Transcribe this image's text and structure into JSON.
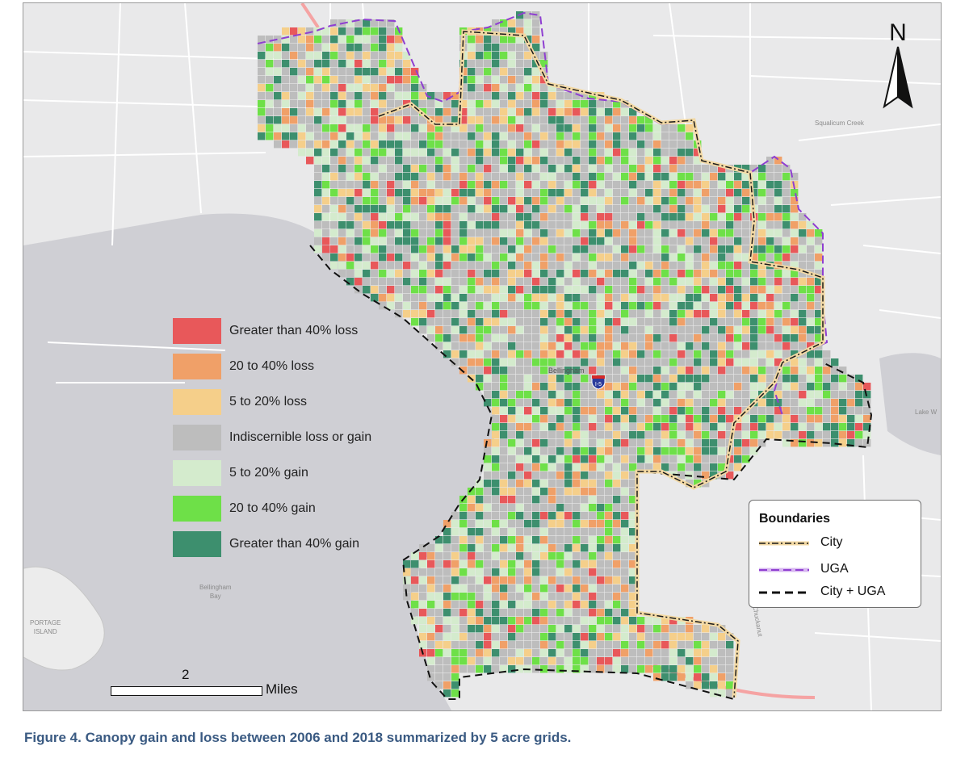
{
  "caption": "Figure 4. Canopy gain and loss between 2006 and 2018 summarized by 5 acre grids.",
  "legend": {
    "items": [
      {
        "label": "Greater than 40% loss",
        "color": "#e8585a"
      },
      {
        "label": "20 to 40% loss",
        "color": "#f0a068"
      },
      {
        "label": "5 to 20% loss",
        "color": "#f5cf8a"
      },
      {
        "label": "Indiscernible loss or gain",
        "color": "#bdbdbd"
      },
      {
        "label": "5 to 20% gain",
        "color": "#d4ebcd"
      },
      {
        "label": "20 to 40% gain",
        "color": "#6ee048"
      },
      {
        "label": "Greater than 40% gain",
        "color": "#3d8f6e"
      }
    ]
  },
  "boundaries": {
    "title": "Boundaries",
    "items": [
      {
        "label": "City",
        "style": "dash-dot",
        "color": "#1a1a1a",
        "halo": "#f3d9a4"
      },
      {
        "label": "UGA",
        "style": "dash",
        "color": "#8f3fd1",
        "halo": "#d8b8f0"
      },
      {
        "label": "City + UGA",
        "style": "dash",
        "color": "#111111"
      }
    ]
  },
  "scale": {
    "value": "2",
    "unit": "Miles"
  },
  "north_label": "N",
  "highway_shield": "I-5",
  "map_labels": {
    "city": "Bellingham",
    "bay_line1": "Bellingham",
    "bay_line2": "Bay",
    "island_line1": "PORTAGE",
    "island_line2": "ISLAND",
    "creek_north": "Squalicum Creek",
    "lake": "Lake W",
    "chuckanut": "Chuckanut"
  },
  "colors": {
    "water": "#cfcfd4",
    "land": "#ececec",
    "road": "#ffffff",
    "highway": "#f5a3a3"
  }
}
